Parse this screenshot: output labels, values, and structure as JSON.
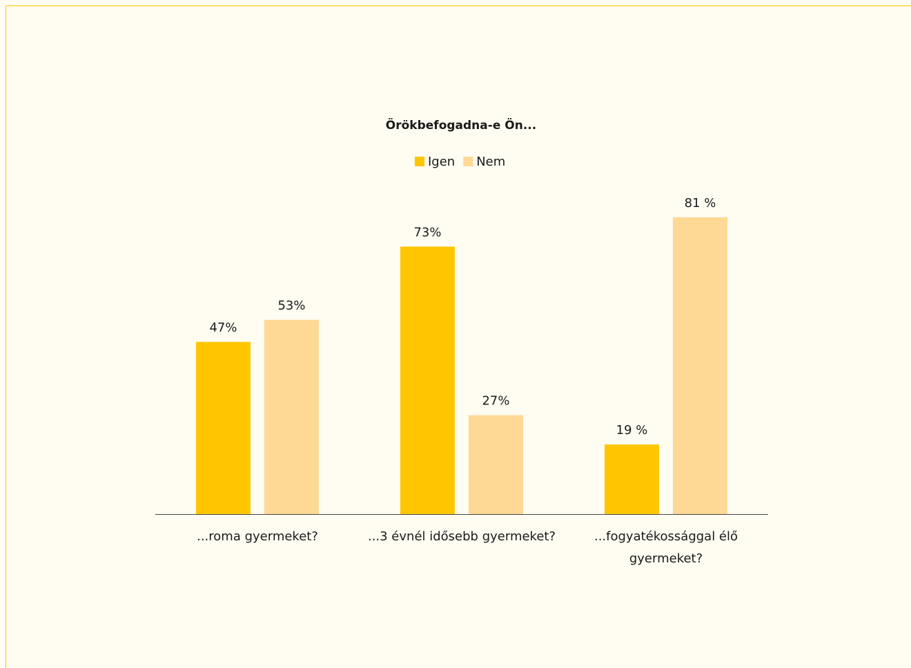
{
  "chart_data": {
    "type": "bar",
    "title": "Örökbefogadna-e Ön...",
    "categories": [
      "...roma gyermeket?",
      "...3 évnél idősebb gyermeket?",
      "...fogyatékossággal élő gyermeket?"
    ],
    "series": [
      {
        "name": "Igen",
        "color": "#ffc600",
        "values": [
          47,
          73,
          19
        ],
        "value_labels": [
          "47%",
          "73%",
          "19 %"
        ]
      },
      {
        "name": "Nem",
        "color": "#fdd995",
        "values": [
          53,
          27,
          81
        ],
        "value_labels": [
          "53%",
          "27%",
          "81 %"
        ]
      }
    ],
    "ylim": [
      0,
      100
    ],
    "legend": "top"
  }
}
